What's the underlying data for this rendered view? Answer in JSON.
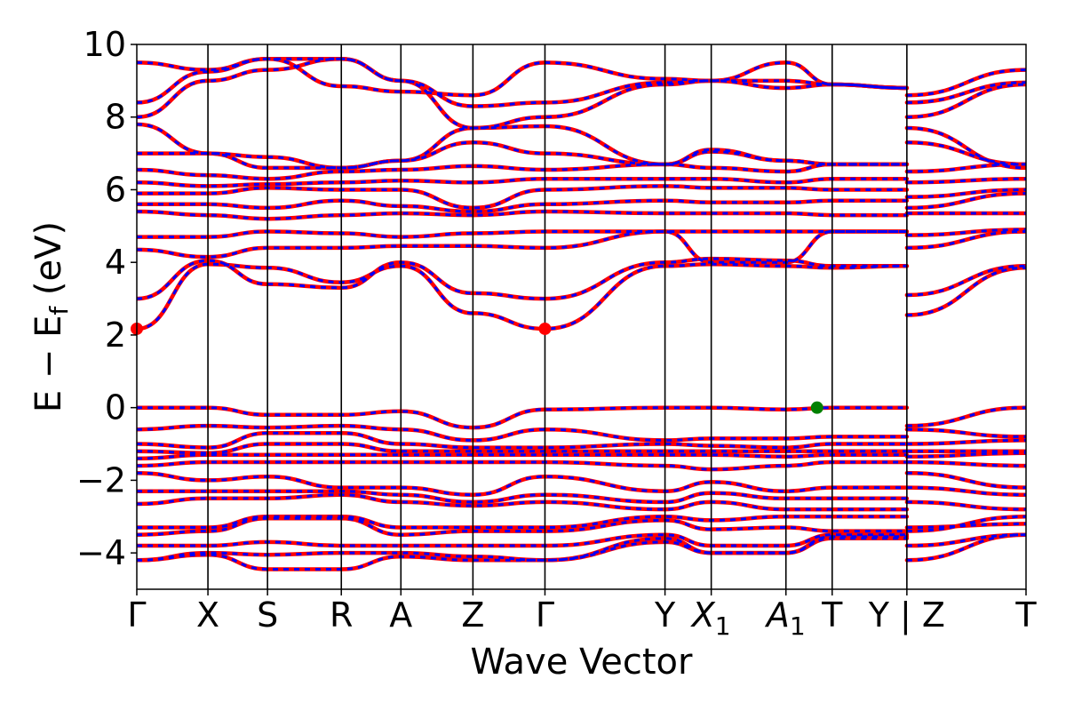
{
  "chart_data": {
    "type": "line",
    "title": "",
    "xlabel": "Wave Vector",
    "ylabel": "E − E",
    "ylabel_sub": "f",
    "ylabel_unit": " (eV)",
    "ylim": [
      -5,
      10
    ],
    "yticks": [
      {
        "value": -4,
        "label": "−4"
      },
      {
        "value": -2,
        "label": "−2"
      },
      {
        "value": 0,
        "label": "0"
      },
      {
        "value": 2,
        "label": "2"
      },
      {
        "value": 4,
        "label": "4"
      },
      {
        "value": 6,
        "label": "6"
      },
      {
        "value": 8,
        "label": "8"
      },
      {
        "value": 10,
        "label": "10"
      }
    ],
    "kpoints": [
      {
        "pos": 0.0,
        "label": "Γ",
        "sub": ""
      },
      {
        "pos": 0.08,
        "label": "X",
        "sub": ""
      },
      {
        "pos": 0.147,
        "label": "S",
        "sub": ""
      },
      {
        "pos": 0.23,
        "label": "R",
        "sub": ""
      },
      {
        "pos": 0.297,
        "label": "A",
        "sub": ""
      },
      {
        "pos": 0.378,
        "label": "Z",
        "sub": ""
      },
      {
        "pos": 0.459,
        "label": "Γ",
        "sub": ""
      },
      {
        "pos": 0.594,
        "label": "Y",
        "sub": ""
      },
      {
        "pos": 0.646,
        "label": "X",
        "sub": "1"
      },
      {
        "pos": 0.73,
        "label": "A",
        "sub": "1"
      },
      {
        "pos": 0.782,
        "label": "T",
        "sub": ""
      },
      {
        "pos": 0.866,
        "label": "Y | Z",
        "sub": ""
      },
      {
        "pos": 1.0,
        "label": "T",
        "sub": ""
      }
    ],
    "grid": false,
    "line_colors": {
      "dft": "#0000ff",
      "model": "#ff0000",
      "kpath_lines": "#000000"
    },
    "markers": [
      {
        "name": "cbm",
        "x": 0.0,
        "y": 2.17,
        "color": "#ff0000"
      },
      {
        "name": "cbm",
        "x": 0.459,
        "y": 2.17,
        "color": "#ff0000"
      },
      {
        "name": "vbm",
        "x": 0.765,
        "y": 0.0,
        "color": "#008000"
      }
    ],
    "series": [
      {
        "x": [
          0,
          0.08,
          0.147,
          0.23,
          0.297,
          0.378,
          0.459,
          0.594,
          0.646,
          0.73,
          0.782,
          0.866
        ],
        "y": [
          2.17,
          3.95,
          3.85,
          3.45,
          3.9,
          2.6,
          2.17,
          3.9,
          3.95,
          3.9,
          3.85,
          3.9
        ]
      },
      {
        "x": [
          0.866,
          1.0
        ],
        "y": [
          2.55,
          3.85
        ]
      },
      {
        "x": [
          0,
          0.08,
          0.147,
          0.23,
          0.297,
          0.378,
          0.459,
          0.594,
          0.646,
          0.73,
          0.782,
          0.866
        ],
        "y": [
          3.0,
          4.05,
          3.4,
          3.3,
          4.0,
          3.15,
          3.0,
          4.0,
          4.1,
          4.05,
          3.9,
          3.9
        ]
      },
      {
        "x": [
          0.866,
          1.0
        ],
        "y": [
          3.1,
          3.9
        ]
      },
      {
        "x": [
          0,
          0.08,
          0.147,
          0.23,
          0.297,
          0.378,
          0.459,
          0.594,
          0.646,
          0.73,
          0.782,
          0.866
        ],
        "y": [
          4.35,
          4.15,
          4.4,
          4.4,
          4.45,
          4.45,
          4.4,
          4.85,
          4.0,
          4.0,
          4.85,
          4.85
        ]
      },
      {
        "x": [
          0.866,
          1.0
        ],
        "y": [
          4.4,
          4.85
        ]
      },
      {
        "x": [
          0,
          0.08,
          0.147,
          0.23,
          0.297,
          0.378,
          0.459,
          0.594,
          0.646,
          0.73,
          0.782,
          0.866
        ],
        "y": [
          4.7,
          4.7,
          4.85,
          4.8,
          4.7,
          4.8,
          4.85,
          4.85,
          4.85,
          4.85,
          4.85,
          4.85
        ]
      },
      {
        "x": [
          0.866,
          1.0
        ],
        "y": [
          4.75,
          4.9
        ]
      },
      {
        "x": [
          0,
          0.08,
          0.147,
          0.23,
          0.297,
          0.378,
          0.459,
          0.594,
          0.646,
          0.73,
          0.782,
          0.866
        ],
        "y": [
          5.4,
          5.3,
          5.2,
          5.3,
          5.35,
          5.3,
          5.4,
          5.35,
          5.35,
          5.35,
          5.3,
          5.3
        ]
      },
      {
        "x": [
          0.866,
          1.0
        ],
        "y": [
          5.35,
          5.35
        ]
      },
      {
        "x": [
          0,
          0.08,
          0.147,
          0.23,
          0.297,
          0.378,
          0.459,
          0.594,
          0.646,
          0.73,
          0.782,
          0.866
        ],
        "y": [
          5.6,
          5.6,
          5.5,
          5.7,
          5.55,
          5.4,
          5.6,
          5.7,
          5.65,
          5.65,
          5.7,
          5.7
        ]
      },
      {
        "x": [
          0.866,
          1.0
        ],
        "y": [
          5.5,
          5.9
        ]
      },
      {
        "x": [
          0,
          0.08,
          0.147,
          0.23,
          0.297,
          0.378,
          0.459,
          0.594,
          0.646,
          0.73,
          0.782,
          0.866
        ],
        "y": [
          5.9,
          5.9,
          6.05,
          6.0,
          6.0,
          5.5,
          6.0,
          6.1,
          6.05,
          6.05,
          6.0,
          6.0
        ]
      },
      {
        "x": [
          0.866,
          1.0
        ],
        "y": [
          5.8,
          6.0
        ]
      },
      {
        "x": [
          0,
          0.08,
          0.147,
          0.23,
          0.297,
          0.378,
          0.459,
          0.594,
          0.646,
          0.73,
          0.782,
          0.866
        ],
        "y": [
          6.2,
          6.1,
          6.15,
          6.2,
          6.25,
          6.2,
          6.3,
          6.3,
          6.3,
          6.2,
          6.3,
          6.3
        ]
      },
      {
        "x": [
          0.866,
          1.0
        ],
        "y": [
          6.2,
          6.3
        ]
      },
      {
        "x": [
          0,
          0.08,
          0.147,
          0.23,
          0.297,
          0.378,
          0.459,
          0.594,
          0.646,
          0.73,
          0.782,
          0.866
        ],
        "y": [
          6.55,
          6.4,
          6.3,
          6.5,
          6.55,
          6.65,
          6.55,
          6.7,
          6.6,
          6.5,
          6.7,
          6.7
        ]
      },
      {
        "x": [
          0.866,
          1.0
        ],
        "y": [
          6.5,
          6.7
        ]
      },
      {
        "x": [
          0,
          0.08,
          0.147,
          0.23,
          0.297,
          0.378,
          0.459,
          0.594,
          0.646,
          0.73,
          0.782,
          0.866
        ],
        "y": [
          7.0,
          7.0,
          6.6,
          6.6,
          6.8,
          7.3,
          7.0,
          6.7,
          7.05,
          6.8,
          6.7,
          6.7
        ]
      },
      {
        "x": [
          0.866,
          1.0
        ],
        "y": [
          7.3,
          6.7
        ]
      },
      {
        "x": [
          0,
          0.08,
          0.147,
          0.23,
          0.297,
          0.378,
          0.459,
          0.594,
          0.646,
          0.73,
          0.782,
          0.866
        ],
        "y": [
          7.8,
          7.0,
          6.9,
          6.6,
          6.8,
          7.7,
          7.75,
          6.7,
          7.1,
          6.8,
          6.7,
          6.7
        ]
      },
      {
        "x": [
          0.866,
          1.0
        ],
        "y": [
          7.7,
          6.6
        ]
      },
      {
        "x": [
          0,
          0.08,
          0.147,
          0.23,
          0.297,
          0.378,
          0.459,
          0.594,
          0.646,
          0.73,
          0.782,
          0.866
        ],
        "y": [
          8.0,
          9.0,
          9.3,
          9.6,
          9.0,
          7.7,
          8.0,
          8.9,
          9.0,
          8.8,
          8.9,
          8.8
        ]
      },
      {
        "x": [
          0.866,
          1.0
        ],
        "y": [
          8.0,
          8.9
        ]
      },
      {
        "x": [
          0,
          0.08,
          0.147,
          0.23,
          0.297,
          0.378,
          0.459,
          0.594,
          0.646,
          0.73,
          0.782,
          0.866
        ],
        "y": [
          8.4,
          9.25,
          9.6,
          9.6,
          9.0,
          8.3,
          8.4,
          8.95,
          9.0,
          9.0,
          8.9,
          8.8
        ]
      },
      {
        "x": [
          0.866,
          1.0
        ],
        "y": [
          8.4,
          8.95
        ]
      },
      {
        "x": [
          0,
          0.08,
          0.147,
          0.23,
          0.297,
          0.378,
          0.459,
          0.594,
          0.646,
          0.73,
          0.782,
          0.866
        ],
        "y": [
          9.5,
          9.3,
          9.6,
          8.85,
          8.7,
          8.6,
          9.5,
          9.05,
          9.0,
          9.5,
          8.9,
          8.8
        ]
      },
      {
        "x": [
          0.866,
          1.0
        ],
        "y": [
          8.6,
          9.3
        ]
      },
      {
        "x": [
          0,
          0.08,
          0.147,
          0.23,
          0.297,
          0.378,
          0.459,
          0.594,
          0.646,
          0.73,
          0.782,
          0.866
        ],
        "y": [
          0.0,
          0.0,
          -0.2,
          -0.2,
          -0.1,
          -0.55,
          -0.05,
          0.0,
          0.0,
          -0.05,
          0.0,
          0.0
        ]
      },
      {
        "x": [
          0.866,
          1.0
        ],
        "y": [
          -0.5,
          0.0
        ]
      },
      {
        "x": [
          0,
          0.08,
          0.147,
          0.23,
          0.297,
          0.378,
          0.459,
          0.594,
          0.646,
          0.73,
          0.782,
          0.866
        ],
        "y": [
          -0.6,
          -0.5,
          -0.55,
          -0.5,
          -0.6,
          -0.9,
          -0.6,
          -0.9,
          -0.85,
          -0.85,
          -0.8,
          -0.8
        ]
      },
      {
        "x": [
          0.866,
          1.0
        ],
        "y": [
          -0.6,
          -0.8
        ]
      },
      {
        "x": [
          0,
          0.08,
          0.147,
          0.23,
          0.297,
          0.378,
          0.459,
          0.594,
          0.646,
          0.73,
          0.782,
          0.866
        ],
        "y": [
          -1.0,
          -1.1,
          -0.7,
          -0.7,
          -1.0,
          -1.1,
          -1.1,
          -1.0,
          -1.05,
          -1.1,
          -1.0,
          -1.0
        ]
      },
      {
        "x": [
          0.866,
          1.0
        ],
        "y": [
          -1.0,
          -0.9
        ]
      },
      {
        "x": [
          0,
          0.08,
          0.147,
          0.23,
          0.297,
          0.378,
          0.459,
          0.594,
          0.646,
          0.73,
          0.782,
          0.866
        ],
        "y": [
          -1.2,
          -1.25,
          -1.0,
          -1.0,
          -1.2,
          -1.2,
          -1.2,
          -1.2,
          -1.2,
          -1.2,
          -1.2,
          -1.2
        ]
      },
      {
        "x": [
          0.866,
          1.0
        ],
        "y": [
          -1.2,
          -1.2
        ]
      },
      {
        "x": [
          0,
          0.08,
          0.147,
          0.23,
          0.297,
          0.378,
          0.459,
          0.594,
          0.646,
          0.73,
          0.782,
          0.866
        ],
        "y": [
          -1.4,
          -1.3,
          -1.3,
          -1.3,
          -1.3,
          -1.3,
          -1.3,
          -1.3,
          -1.3,
          -1.35,
          -1.3,
          -1.3
        ]
      },
      {
        "x": [
          0.866,
          1.0
        ],
        "y": [
          -1.35,
          -1.25
        ]
      },
      {
        "x": [
          0,
          0.08,
          0.147,
          0.23,
          0.297,
          0.378,
          0.459,
          0.594,
          0.646,
          0.73,
          0.782,
          0.866
        ],
        "y": [
          -1.6,
          -1.5,
          -1.5,
          -1.5,
          -1.5,
          -1.5,
          -1.5,
          -1.6,
          -1.7,
          -1.6,
          -1.5,
          -1.5
        ]
      },
      {
        "x": [
          0.866,
          1.0
        ],
        "y": [
          -1.5,
          -1.6
        ]
      },
      {
        "x": [
          0,
          0.08,
          0.147,
          0.23,
          0.297,
          0.378,
          0.459,
          0.594,
          0.646,
          0.73,
          0.782,
          0.866
        ],
        "y": [
          -1.8,
          -2.0,
          -1.9,
          -2.2,
          -2.2,
          -2.4,
          -1.9,
          -2.3,
          -2.05,
          -2.3,
          -2.2,
          -2.2
        ]
      },
      {
        "x": [
          0.866,
          1.0
        ],
        "y": [
          -1.8,
          -2.2
        ]
      },
      {
        "x": [
          0,
          0.08,
          0.147,
          0.23,
          0.297,
          0.378,
          0.459,
          0.594,
          0.646,
          0.73,
          0.782,
          0.866
        ],
        "y": [
          -2.3,
          -2.3,
          -2.3,
          -2.3,
          -2.4,
          -2.6,
          -2.4,
          -2.6,
          -2.35,
          -2.5,
          -2.5,
          -2.5
        ]
      },
      {
        "x": [
          0.866,
          1.0
        ],
        "y": [
          -2.2,
          -2.4
        ]
      },
      {
        "x": [
          0,
          0.08,
          0.147,
          0.23,
          0.297,
          0.378,
          0.459,
          0.594,
          0.646,
          0.73,
          0.782,
          0.866
        ],
        "y": [
          -2.65,
          -2.5,
          -2.5,
          -2.4,
          -2.6,
          -2.7,
          -2.6,
          -2.8,
          -2.6,
          -2.8,
          -2.8,
          -2.8
        ]
      },
      {
        "x": [
          0.866,
          1.0
        ],
        "y": [
          -2.6,
          -2.8
        ]
      },
      {
        "x": [
          0,
          0.08,
          0.147,
          0.23,
          0.297,
          0.378,
          0.459,
          0.594,
          0.646,
          0.73,
          0.782,
          0.866
        ],
        "y": [
          -3.3,
          -3.3,
          -3.0,
          -3.0,
          -3.3,
          -3.3,
          -3.3,
          -3.0,
          -3.1,
          -3.0,
          -3.0,
          -3.0
        ]
      },
      {
        "x": [
          0.866,
          1.0
        ],
        "y": [
          -3.3,
          -3.2
        ]
      },
      {
        "x": [
          0,
          0.08,
          0.147,
          0.23,
          0.297,
          0.378,
          0.459,
          0.594,
          0.646,
          0.73,
          0.782,
          0.866
        ],
        "y": [
          -3.5,
          -3.4,
          -3.05,
          -3.05,
          -3.5,
          -3.4,
          -3.4,
          -3.1,
          -3.35,
          -3.3,
          -3.4,
          -3.4
        ]
      },
      {
        "x": [
          0.866,
          1.0
        ],
        "y": [
          -3.4,
          -3.0
        ]
      },
      {
        "x": [
          0,
          0.08,
          0.147,
          0.23,
          0.297,
          0.378,
          0.459,
          0.594,
          0.646,
          0.73,
          0.782,
          0.866
        ],
        "y": [
          -3.8,
          -3.8,
          -3.7,
          -3.8,
          -3.8,
          -3.8,
          -3.8,
          -3.5,
          -3.8,
          -3.8,
          -3.5,
          -3.5
        ]
      },
      {
        "x": [
          0.866,
          1.0
        ],
        "y": [
          -3.8,
          -3.5
        ]
      },
      {
        "x": [
          0,
          0.08,
          0.147,
          0.23,
          0.297,
          0.378,
          0.459,
          0.594,
          0.646,
          0.73,
          0.782,
          0.866
        ],
        "y": [
          -4.2,
          -4.0,
          -4.05,
          -4.0,
          -4.0,
          -4.1,
          -4.2,
          -3.6,
          -4.0,
          -4.0,
          -3.55,
          -3.55
        ]
      },
      {
        "x": [
          0.866,
          1.0
        ],
        "y": [
          -4.2,
          -3.5
        ]
      },
      {
        "x": [
          0,
          0.08,
          0.147,
          0.23,
          0.297,
          0.378,
          0.459,
          0.594,
          0.646,
          0.73,
          0.782,
          0.866
        ],
        "y": [
          -4.2,
          -4.05,
          -4.45,
          -4.45,
          -4.1,
          -4.2,
          -4.2,
          -3.7,
          -4.0,
          -4.0,
          -3.6,
          -3.6
        ]
      }
    ]
  }
}
